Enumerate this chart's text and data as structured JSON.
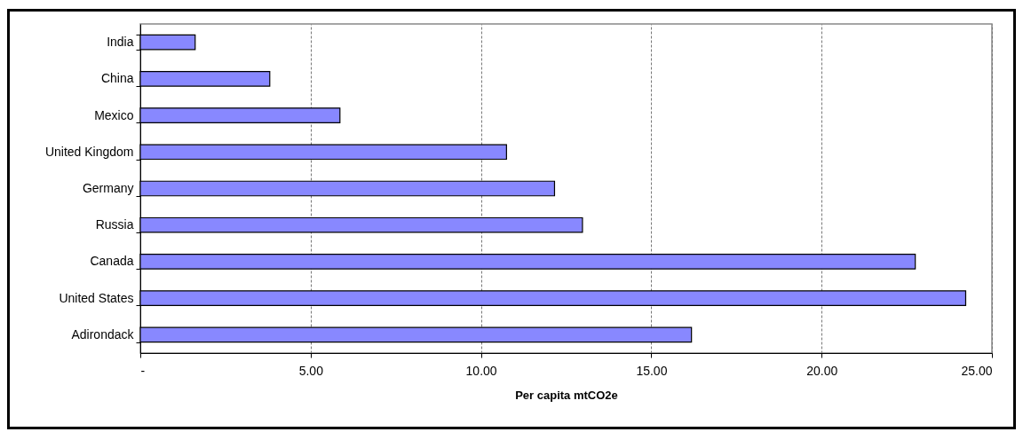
{
  "chart_data": {
    "type": "bar",
    "orientation": "horizontal",
    "xlabel": "Per capita mtCO2e",
    "categories": [
      "India",
      "China",
      "Mexico",
      "United Kingdom",
      "Germany",
      "Russia",
      "Canada",
      "United States",
      "Adirondack"
    ],
    "values": [
      1.61,
      3.8,
      5.86,
      10.75,
      12.16,
      12.98,
      22.75,
      24.23,
      16.18
    ],
    "color": "#8888ff",
    "xlim": [
      0,
      25
    ],
    "xticks": [
      {
        "value": 0,
        "label": "-"
      },
      {
        "value": 5,
        "label": "5.00"
      },
      {
        "value": 10,
        "label": "10.00"
      },
      {
        "value": 15,
        "label": "15.00"
      },
      {
        "value": 20,
        "label": "20.00"
      },
      {
        "value": 25,
        "label": "25.00"
      }
    ],
    "grid": "x"
  }
}
